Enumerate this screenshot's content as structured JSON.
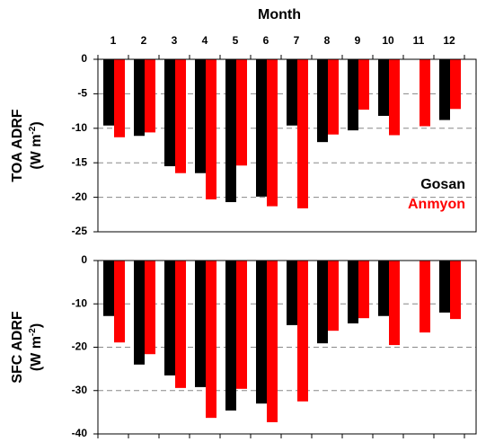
{
  "chart_data": [
    {
      "type": "bar",
      "xlabel": "Month",
      "categories": [
        "1",
        "2",
        "3",
        "4",
        "5",
        "6",
        "7",
        "8",
        "9",
        "10",
        "11",
        "12"
      ],
      "ylabel": "TOA ADRF",
      "yunit": {
        "base": "(W m",
        "exp": "-2",
        "close": ")"
      },
      "ylim": [
        -25,
        0
      ],
      "yticks": [
        0,
        -5,
        -10,
        -15,
        -20,
        -25
      ],
      "grid": true,
      "legend": "right",
      "series": [
        {
          "name": "Gosan",
          "color": "#000000",
          "values": [
            -9.6,
            -11.1,
            -15.5,
            -16.5,
            -20.7,
            -19.9,
            -9.6,
            -12.0,
            -10.3,
            -8.2,
            null,
            -8.8
          ]
        },
        {
          "name": "Anmyon",
          "color": "#ff0000",
          "values": [
            -11.3,
            -10.6,
            -16.5,
            -20.3,
            -15.4,
            -21.3,
            -21.6,
            -10.9,
            -7.3,
            -11.0,
            -9.7,
            -7.2
          ]
        }
      ]
    },
    {
      "type": "bar",
      "ylabel": "SFC ADRF",
      "yunit": {
        "base": "(W m",
        "exp": "-2",
        "close": ")"
      },
      "ylim": [
        -40,
        0
      ],
      "yticks": [
        0,
        -10,
        -20,
        -30,
        -40
      ],
      "grid": true,
      "series": [
        {
          "name": "Gosan",
          "color": "#000000",
          "values": [
            -12.8,
            -24.0,
            -26.5,
            -29.2,
            -34.6,
            -33.0,
            -14.9,
            -19.1,
            -14.5,
            -12.8,
            null,
            -12.0
          ]
        },
        {
          "name": "Anmyon",
          "color": "#ff0000",
          "values": [
            -18.9,
            -21.6,
            -29.4,
            -36.3,
            -29.6,
            -37.3,
            -32.5,
            -16.2,
            -13.3,
            -19.5,
            -16.6,
            -13.5
          ]
        }
      ]
    }
  ]
}
